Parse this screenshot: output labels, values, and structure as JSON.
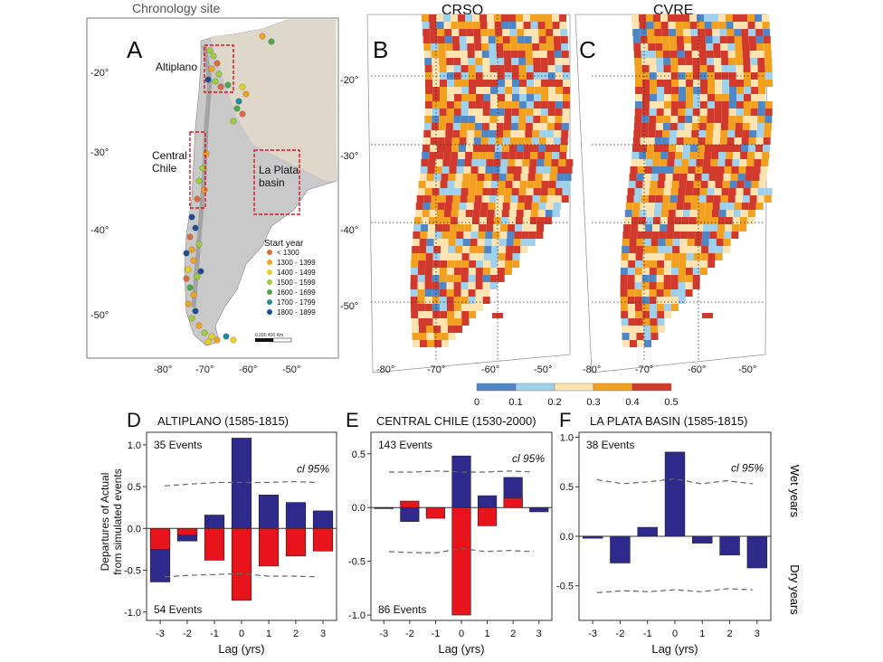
{
  "map_a": {
    "title": "Chronology site",
    "letter": "A",
    "regions": [
      "Altiplano",
      "Central\nChile",
      "La Plata\nbasin"
    ],
    "lat_ticks": [
      "-20°",
      "-30°",
      "-40°",
      "-50°"
    ],
    "lon_ticks": [
      "-80°",
      "-70°",
      "-60°",
      "-50°"
    ],
    "legend_title": "Start year",
    "legend": [
      {
        "label": "< 1300",
        "color": "#e06a3a"
      },
      {
        "label": "1300 - 1399",
        "color": "#f2a31f"
      },
      {
        "label": "1400 - 1499",
        "color": "#e8d21e"
      },
      {
        "label": "1500 - 1599",
        "color": "#9ccd3a"
      },
      {
        "label": "1600 - 1699",
        "color": "#4aa84a"
      },
      {
        "label": "1700 - 1799",
        "color": "#1e8f9a"
      },
      {
        "label": "1800 - 1899",
        "color": "#1b4f96"
      }
    ],
    "scale_label": "0   200    400 Km"
  },
  "map_b": {
    "title": "CRSQ",
    "letter": "B"
  },
  "map_c": {
    "title": "CVRE",
    "letter": "C"
  },
  "map_lat_ticks": [
    "-20°",
    "-30°",
    "-40°",
    "-50°"
  ],
  "map_lon_ticks": [
    "-80°",
    "-70°",
    "-60°",
    "-50°"
  ],
  "colorbar": {
    "ticks": [
      "0",
      "0.1",
      "0.2",
      "0.3",
      "0.4",
      "0.5"
    ],
    "colors": [
      "#4f86c6",
      "#9fd0ec",
      "#fce3b0",
      "#f2a020",
      "#d0392b"
    ]
  },
  "shared": {
    "ylabel": "Departures of Actual\nfrom simulated events",
    "xlabel": "Lag (yrs)",
    "cl_label": "cl 95%",
    "wet_label": "Wet years",
    "dry_label": "Dry years",
    "wet_color": "#2d2a8c",
    "dry_color": "#e8141c"
  },
  "chart_data": [
    {
      "type": "bar",
      "letter": "D",
      "title": "ALTIPLANO (1585-1815)",
      "x": [
        -3,
        -2,
        -1,
        0,
        1,
        2,
        3
      ],
      "wet_events": "35 Events",
      "dry_events": "54 Events",
      "ylim": [
        -1.1,
        1.15
      ],
      "yticks": [
        "1.0",
        "0.5",
        "0.0",
        "-0.5",
        "-1.0"
      ],
      "xticks": [
        "-3",
        "-2",
        "-1",
        "0",
        "1",
        "2",
        "3"
      ],
      "series": [
        {
          "name": "Wet years",
          "values": [
            -0.64,
            -0.15,
            0.16,
            1.08,
            0.4,
            0.31,
            0.21
          ]
        },
        {
          "name": "Dry years",
          "values": [
            -0.25,
            -0.08,
            -0.38,
            -0.86,
            -0.45,
            -0.33,
            -0.27
          ]
        }
      ],
      "ci_upper": [
        0.51,
        0.53,
        0.55,
        0.55,
        0.55,
        0.56,
        0.55
      ],
      "ci_lower": [
        -0.58,
        -0.56,
        -0.55,
        -0.54,
        -0.57,
        -0.57,
        -0.58
      ]
    },
    {
      "type": "bar",
      "letter": "E",
      "title": "CENTRAL CHILE (1530-2000)",
      "x": [
        -3,
        -2,
        -1,
        0,
        1,
        2,
        3
      ],
      "wet_events": "143 Events",
      "dry_events": "86 Events",
      "ylim": [
        -1.05,
        0.7
      ],
      "yticks": [
        "0.5",
        "0.0",
        "-0.5",
        "-1.0"
      ],
      "xticks": [
        "-3",
        "-2",
        "-1",
        "0",
        "1",
        "2",
        "3"
      ],
      "series": [
        {
          "name": "Wet years",
          "values": [
            -0.01,
            -0.13,
            -0.07,
            0.48,
            0.11,
            0.28,
            -0.04
          ]
        },
        {
          "name": "Dry years",
          "values": [
            0.0,
            0.06,
            -0.1,
            -1.0,
            -0.17,
            0.09,
            0.0
          ]
        }
      ],
      "ci_upper": [
        0.33,
        0.33,
        0.34,
        0.33,
        0.33,
        0.34,
        0.33
      ],
      "ci_lower": [
        -0.41,
        -0.42,
        -0.42,
        -0.38,
        -0.41,
        -0.4,
        -0.41
      ]
    },
    {
      "type": "bar",
      "letter": "F",
      "title": "LA PLATA BASIN (1585-1815)",
      "x": [
        -3,
        -2,
        -1,
        0,
        1,
        2,
        3
      ],
      "wet_events": "38 Events",
      "dry_events": "",
      "ylim": [
        -0.85,
        1.05
      ],
      "yticks": [
        "1.0",
        "0.5",
        "0.0",
        "-0.5"
      ],
      "xticks": [
        "-3",
        "-2",
        "-1",
        "0",
        "1",
        "2",
        "3"
      ],
      "series": [
        {
          "name": "Wet years",
          "values": [
            -0.02,
            -0.27,
            0.09,
            0.85,
            -0.07,
            -0.19,
            -0.32
          ]
        }
      ],
      "ci_upper": [
        0.57,
        0.53,
        0.55,
        0.58,
        0.53,
        0.56,
        0.53
      ],
      "ci_lower": [
        -0.57,
        -0.55,
        -0.56,
        -0.54,
        -0.56,
        -0.53,
        -0.54
      ]
    }
  ]
}
